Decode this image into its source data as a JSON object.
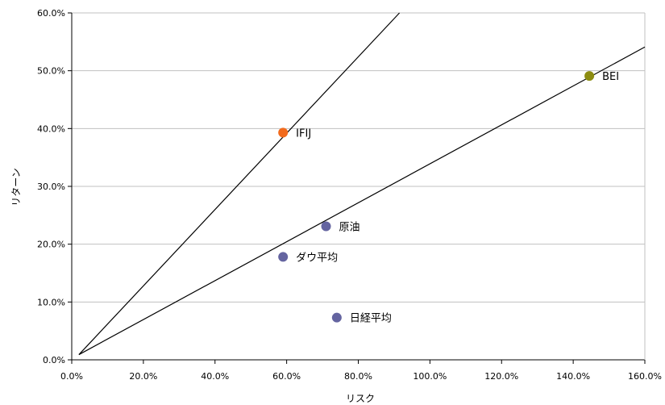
{
  "chart_data": {
    "type": "scatter",
    "xlabel": "リスク",
    "ylabel": "リターン",
    "xlim": [
      0,
      160
    ],
    "ylim": [
      0,
      60
    ],
    "x_ticks": [
      0,
      20,
      40,
      60,
      80,
      100,
      120,
      140,
      160
    ],
    "y_ticks": [
      0,
      10,
      20,
      30,
      40,
      50,
      60
    ],
    "x_tick_labels": [
      "0.0%",
      "20.0%",
      "40.0%",
      "60.0%",
      "80.0%",
      "100.0%",
      "120.0%",
      "140.0%",
      "160.0%"
    ],
    "y_tick_labels": [
      "0.0%",
      "10.0%",
      "20.0%",
      "30.0%",
      "40.0%",
      "50.0%",
      "60.0%"
    ],
    "grid": {
      "horizontal": true,
      "vertical": false
    },
    "points": [
      {
        "label": "IFIJ",
        "x": 59.0,
        "y": 39.3,
        "color": "#f26b1d"
      },
      {
        "label": "BEI",
        "x": 144.5,
        "y": 49.1,
        "color": "#8c8c10"
      },
      {
        "label": "原油",
        "x": 71.0,
        "y": 23.1,
        "color": "#6464a0"
      },
      {
        "label": "ダウ平均",
        "x": 59.0,
        "y": 17.8,
        "color": "#6464a0"
      },
      {
        "label": "日経平均",
        "x": 74.0,
        "y": 7.3,
        "color": "#6464a0"
      }
    ],
    "lines": [
      {
        "x": [
          2.0,
          91.5
        ],
        "y": [
          0.9,
          60.0
        ]
      },
      {
        "x": [
          2.0,
          160.0
        ],
        "y": [
          0.9,
          54.1
        ]
      }
    ],
    "colors": {
      "axis": "#000000",
      "grid": "#c0c0c0",
      "line": "#000000"
    }
  }
}
